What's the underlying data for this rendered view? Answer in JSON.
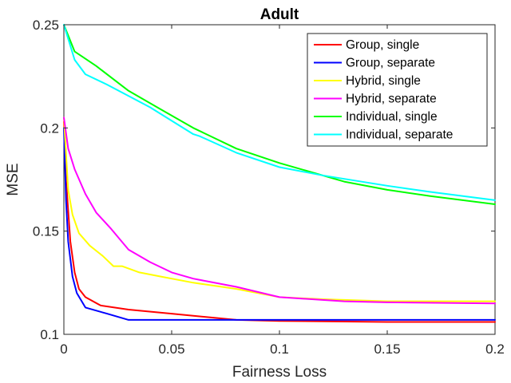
{
  "chart_data": {
    "type": "line",
    "title": "Adult",
    "xlabel": "Fairness Loss",
    "ylabel": "MSE",
    "xlim": [
      0,
      0.2
    ],
    "ylim": [
      0.1,
      0.25
    ],
    "xticks": [
      0,
      0.05,
      0.1,
      0.15,
      0.2
    ],
    "xtick_labels": [
      "0",
      "0.05",
      "0.1",
      "0.15",
      "0.2"
    ],
    "yticks": [
      0.1,
      0.15,
      0.2,
      0.25
    ],
    "ytick_labels": [
      "0.1",
      "0.15",
      "0.2",
      "0.25"
    ],
    "grid": false,
    "legend_position": "top-right",
    "series": [
      {
        "name": "Group, single",
        "color": "#ff0000",
        "points": [
          [
            0,
            0.203
          ],
          [
            0.001,
            0.175
          ],
          [
            0.003,
            0.145
          ],
          [
            0.005,
            0.13
          ],
          [
            0.007,
            0.122
          ],
          [
            0.01,
            0.118
          ],
          [
            0.017,
            0.114
          ],
          [
            0.03,
            0.112
          ],
          [
            0.05,
            0.11
          ],
          [
            0.08,
            0.107
          ],
          [
            0.1,
            0.1065
          ],
          [
            0.15,
            0.106
          ],
          [
            0.2,
            0.106
          ]
        ]
      },
      {
        "name": "Group, separate",
        "color": "#0000ff",
        "points": [
          [
            0,
            0.2
          ],
          [
            0.001,
            0.165
          ],
          [
            0.002,
            0.145
          ],
          [
            0.004,
            0.128
          ],
          [
            0.006,
            0.12
          ],
          [
            0.01,
            0.113
          ],
          [
            0.02,
            0.11
          ],
          [
            0.03,
            0.107
          ],
          [
            0.04,
            0.107
          ],
          [
            0.085,
            0.107
          ],
          [
            0.1,
            0.107
          ],
          [
            0.15,
            0.107
          ],
          [
            0.2,
            0.107
          ]
        ]
      },
      {
        "name": "Hybrid, single",
        "color": "#ffff00",
        "points": [
          [
            0,
            0.205
          ],
          [
            0.002,
            0.17
          ],
          [
            0.004,
            0.158
          ],
          [
            0.007,
            0.149
          ],
          [
            0.012,
            0.143
          ],
          [
            0.018,
            0.138
          ],
          [
            0.023,
            0.133
          ],
          [
            0.027,
            0.133
          ],
          [
            0.035,
            0.13
          ],
          [
            0.045,
            0.128
          ],
          [
            0.06,
            0.125
          ],
          [
            0.08,
            0.122
          ],
          [
            0.1,
            0.118
          ],
          [
            0.12,
            0.117
          ],
          [
            0.15,
            0.116
          ],
          [
            0.2,
            0.116
          ]
        ]
      },
      {
        "name": "Hybrid, separate",
        "color": "#ff00ff",
        "points": [
          [
            0,
            0.205
          ],
          [
            0.002,
            0.19
          ],
          [
            0.005,
            0.18
          ],
          [
            0.01,
            0.168
          ],
          [
            0.015,
            0.159
          ],
          [
            0.022,
            0.151
          ],
          [
            0.03,
            0.141
          ],
          [
            0.04,
            0.135
          ],
          [
            0.05,
            0.13
          ],
          [
            0.06,
            0.127
          ],
          [
            0.08,
            0.123
          ],
          [
            0.1,
            0.118
          ],
          [
            0.13,
            0.116
          ],
          [
            0.15,
            0.1155
          ],
          [
            0.2,
            0.115
          ]
        ]
      },
      {
        "name": "Individual, single",
        "color": "#00ff00",
        "points": [
          [
            0,
            0.25
          ],
          [
            0.005,
            0.237
          ],
          [
            0.015,
            0.23
          ],
          [
            0.03,
            0.218
          ],
          [
            0.045,
            0.209
          ],
          [
            0.06,
            0.2
          ],
          [
            0.08,
            0.19
          ],
          [
            0.1,
            0.183
          ],
          [
            0.13,
            0.174
          ],
          [
            0.15,
            0.17
          ],
          [
            0.17,
            0.167
          ],
          [
            0.2,
            0.163
          ]
        ]
      },
      {
        "name": "Individual, separate",
        "color": "#00ffff",
        "points": [
          [
            0,
            0.25
          ],
          [
            0.005,
            0.233
          ],
          [
            0.01,
            0.226
          ],
          [
            0.02,
            0.221
          ],
          [
            0.04,
            0.21
          ],
          [
            0.06,
            0.197
          ],
          [
            0.063,
            0.196
          ],
          [
            0.08,
            0.188
          ],
          [
            0.1,
            0.181
          ],
          [
            0.12,
            0.177
          ],
          [
            0.15,
            0.172
          ],
          [
            0.17,
            0.169
          ],
          [
            0.2,
            0.165
          ]
        ]
      }
    ]
  }
}
